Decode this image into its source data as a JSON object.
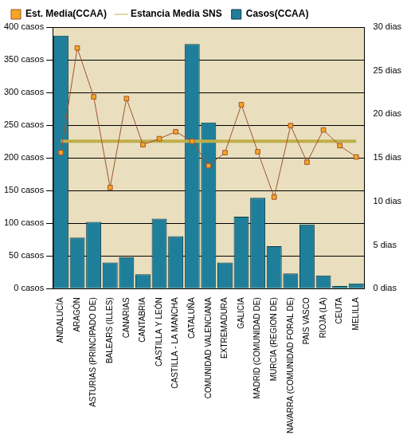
{
  "chart_data": {
    "type": "bar",
    "categories": [
      "ANDALUCÍA",
      "ARAGÓN",
      "ASTURIAS (PRINCIPADO DE)",
      "BALEARS (ILLES)",
      "CANARIAS",
      "CANTABRIA",
      "CASTILLA Y LEÓN",
      "CASTILLA - LA MANCHA",
      "CATALUÑA",
      "COMUNIDAD VALENCIANA",
      "EXTREMADURA",
      "GALICIA",
      "MADRID (COMUNIDAD DE)",
      "MURCIA (REGION DE)",
      "NAVARRA (COMUNIDAD FORAL DE)",
      "PAIS VASCO",
      "RIOJA (LA)",
      "CEUTA",
      "MELILLA"
    ],
    "series": [
      {
        "name": "Casos(CCAA)",
        "type": "bar",
        "color": "#1f7f9a",
        "values": [
          387,
          78,
          102,
          40,
          48,
          22,
          107,
          80,
          374,
          254,
          40,
          110,
          139,
          65,
          23,
          98,
          20,
          4,
          8
        ]
      },
      {
        "name": "Est. Media(CCAA)",
        "type": "line",
        "axis": "y2",
        "color": "#a0522d",
        "marker": "square",
        "values": [
          15.6,
          27.6,
          22.0,
          11.6,
          21.8,
          16.5,
          17.2,
          18.0,
          16.9,
          14.1,
          15.6,
          21.1,
          15.7,
          10.5,
          18.7,
          14.5,
          18.2,
          16.4,
          15.1
        ]
      },
      {
        "name": "Estancia Media SNS",
        "type": "line",
        "axis": "y2",
        "color": "#bfae4a",
        "marker": "none",
        "values": [
          16.9,
          16.9,
          16.9,
          16.9,
          16.9,
          16.9,
          16.9,
          16.9,
          16.9,
          16.9,
          16.9,
          16.9,
          16.9,
          16.9,
          16.9,
          16.9,
          16.9,
          16.9,
          16.9
        ]
      }
    ],
    "ylim": [
      0,
      400
    ],
    "yticks": [
      {
        "value": 0,
        "label": "0 casos"
      },
      {
        "value": 50,
        "label": "50 casos"
      },
      {
        "value": 100,
        "label": "100 casos"
      },
      {
        "value": 150,
        "label": "150 casos"
      },
      {
        "value": 200,
        "label": "200 casos"
      },
      {
        "value": 250,
        "label": "250 casos"
      },
      {
        "value": 300,
        "label": "300 casos"
      },
      {
        "value": 350,
        "label": "350 casos"
      },
      {
        "value": 400,
        "label": "400 casos"
      }
    ],
    "y2lim": [
      0,
      30
    ],
    "y2ticks": [
      {
        "value": 0,
        "label": "0 dias"
      },
      {
        "value": 5,
        "label": "5 dias"
      },
      {
        "value": 10,
        "label": "10 dias"
      },
      {
        "value": 15,
        "label": "15 dias"
      },
      {
        "value": 20,
        "label": "20 dias"
      },
      {
        "value": 25,
        "label": "25 dias"
      },
      {
        "value": 30,
        "label": "30 dias"
      }
    ],
    "grid": true,
    "legend": "top"
  }
}
